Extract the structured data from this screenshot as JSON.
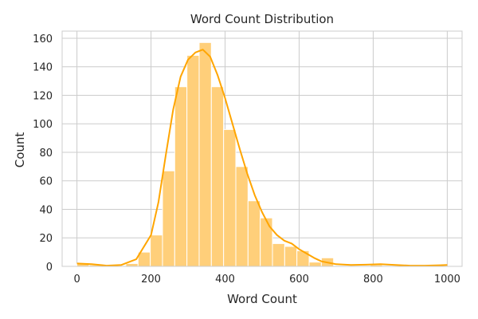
{
  "chart_data": {
    "type": "bar",
    "subtype": "histogram-with-kde",
    "title": "Word Count Distribution",
    "xlabel": "Word Count",
    "ylabel": "Count",
    "xlim": [
      -40,
      1040
    ],
    "ylim": [
      0,
      165
    ],
    "xticks": [
      0,
      200,
      400,
      600,
      800,
      1000
    ],
    "yticks": [
      0,
      20,
      40,
      60,
      80,
      100,
      120,
      140,
      160
    ],
    "grid": true,
    "legend": "none",
    "color": "#FFA500",
    "bar_fill": "#FFCF7A",
    "bins": [
      {
        "x0": 0,
        "x1": 33,
        "count": 2
      },
      {
        "x0": 33,
        "x1": 66,
        "count": 1
      },
      {
        "x0": 66,
        "x1": 99,
        "count": 0
      },
      {
        "x0": 99,
        "x1": 132,
        "count": 0
      },
      {
        "x0": 132,
        "x1": 165,
        "count": 2
      },
      {
        "x0": 165,
        "x1": 198,
        "count": 10
      },
      {
        "x0": 198,
        "x1": 231,
        "count": 22
      },
      {
        "x0": 231,
        "x1": 264,
        "count": 67
      },
      {
        "x0": 264,
        "x1": 297,
        "count": 126
      },
      {
        "x0": 297,
        "x1": 330,
        "count": 148
      },
      {
        "x0": 330,
        "x1": 363,
        "count": 157
      },
      {
        "x0": 363,
        "x1": 396,
        "count": 126
      },
      {
        "x0": 396,
        "x1": 429,
        "count": 96
      },
      {
        "x0": 429,
        "x1": 462,
        "count": 70
      },
      {
        "x0": 462,
        "x1": 495,
        "count": 46
      },
      {
        "x0": 495,
        "x1": 528,
        "count": 34
      },
      {
        "x0": 528,
        "x1": 561,
        "count": 16
      },
      {
        "x0": 561,
        "x1": 594,
        "count": 14
      },
      {
        "x0": 594,
        "x1": 627,
        "count": 11
      },
      {
        "x0": 627,
        "x1": 660,
        "count": 3
      },
      {
        "x0": 660,
        "x1": 693,
        "count": 6
      },
      {
        "x0": 693,
        "x1": 726,
        "count": 0
      },
      {
        "x0": 726,
        "x1": 759,
        "count": 0
      },
      {
        "x0": 759,
        "x1": 792,
        "count": 0
      },
      {
        "x0": 792,
        "x1": 825,
        "count": 1
      },
      {
        "x0": 825,
        "x1": 858,
        "count": 0
      },
      {
        "x0": 858,
        "x1": 891,
        "count": 0
      },
      {
        "x0": 891,
        "x1": 924,
        "count": 0
      },
      {
        "x0": 924,
        "x1": 957,
        "count": 0
      },
      {
        "x0": 957,
        "x1": 990,
        "count": 1
      }
    ],
    "kde": {
      "x": [
        0,
        40,
        80,
        120,
        160,
        200,
        220,
        240,
        260,
        280,
        300,
        320,
        340,
        360,
        380,
        400,
        420,
        440,
        460,
        480,
        500,
        520,
        540,
        560,
        580,
        600,
        620,
        640,
        660,
        680,
        700,
        740,
        780,
        820,
        860,
        900,
        940,
        980,
        1000
      ],
      "y": [
        2,
        1.5,
        0.5,
        1,
        5,
        22,
        45,
        78,
        110,
        133,
        145,
        150,
        152,
        147,
        134,
        118,
        100,
        82,
        65,
        50,
        38,
        28,
        22,
        18,
        16,
        12,
        9,
        6,
        3.5,
        2.5,
        1.5,
        1,
        1.2,
        1.5,
        1,
        0.5,
        0.5,
        0.8,
        1
      ]
    }
  }
}
